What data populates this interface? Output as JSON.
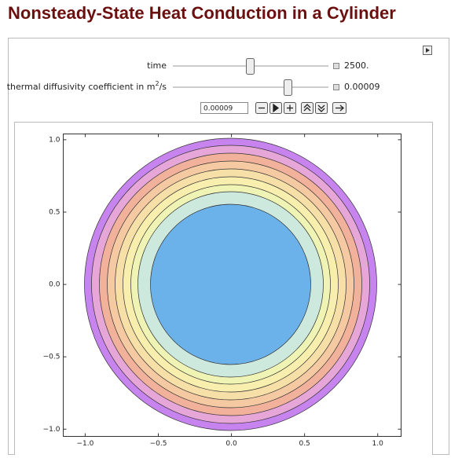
{
  "header": {
    "title": "Nonsteady-State Heat Conduction in a Cylinder"
  },
  "controls": {
    "time": {
      "label": "time",
      "value": "2500."
    },
    "diffusivity": {
      "label": "thermal diffusivity coefficient in m",
      "superscript": "2",
      "suffix": "/s",
      "value": "0.00009"
    },
    "input": "0.00009"
  },
  "plot": {
    "xlim": [
      -1.15,
      1.16
    ],
    "ylim": [
      -1.05,
      1.04
    ],
    "xticks": [
      {
        "value": -1,
        "label": "−1.0"
      },
      {
        "value": -0.5,
        "label": "−0.5"
      },
      {
        "value": 0,
        "label": "0.0"
      },
      {
        "value": 0.5,
        "label": "0.5"
      },
      {
        "value": 1,
        "label": "1.0"
      }
    ],
    "yticks": [
      {
        "value": -1,
        "label": "−1.0"
      },
      {
        "value": -0.5,
        "label": "−0.5"
      },
      {
        "value": 0,
        "label": "0.0"
      },
      {
        "value": 0.5,
        "label": "0.5"
      },
      {
        "value": 1,
        "label": "1.0"
      }
    ]
  }
}
